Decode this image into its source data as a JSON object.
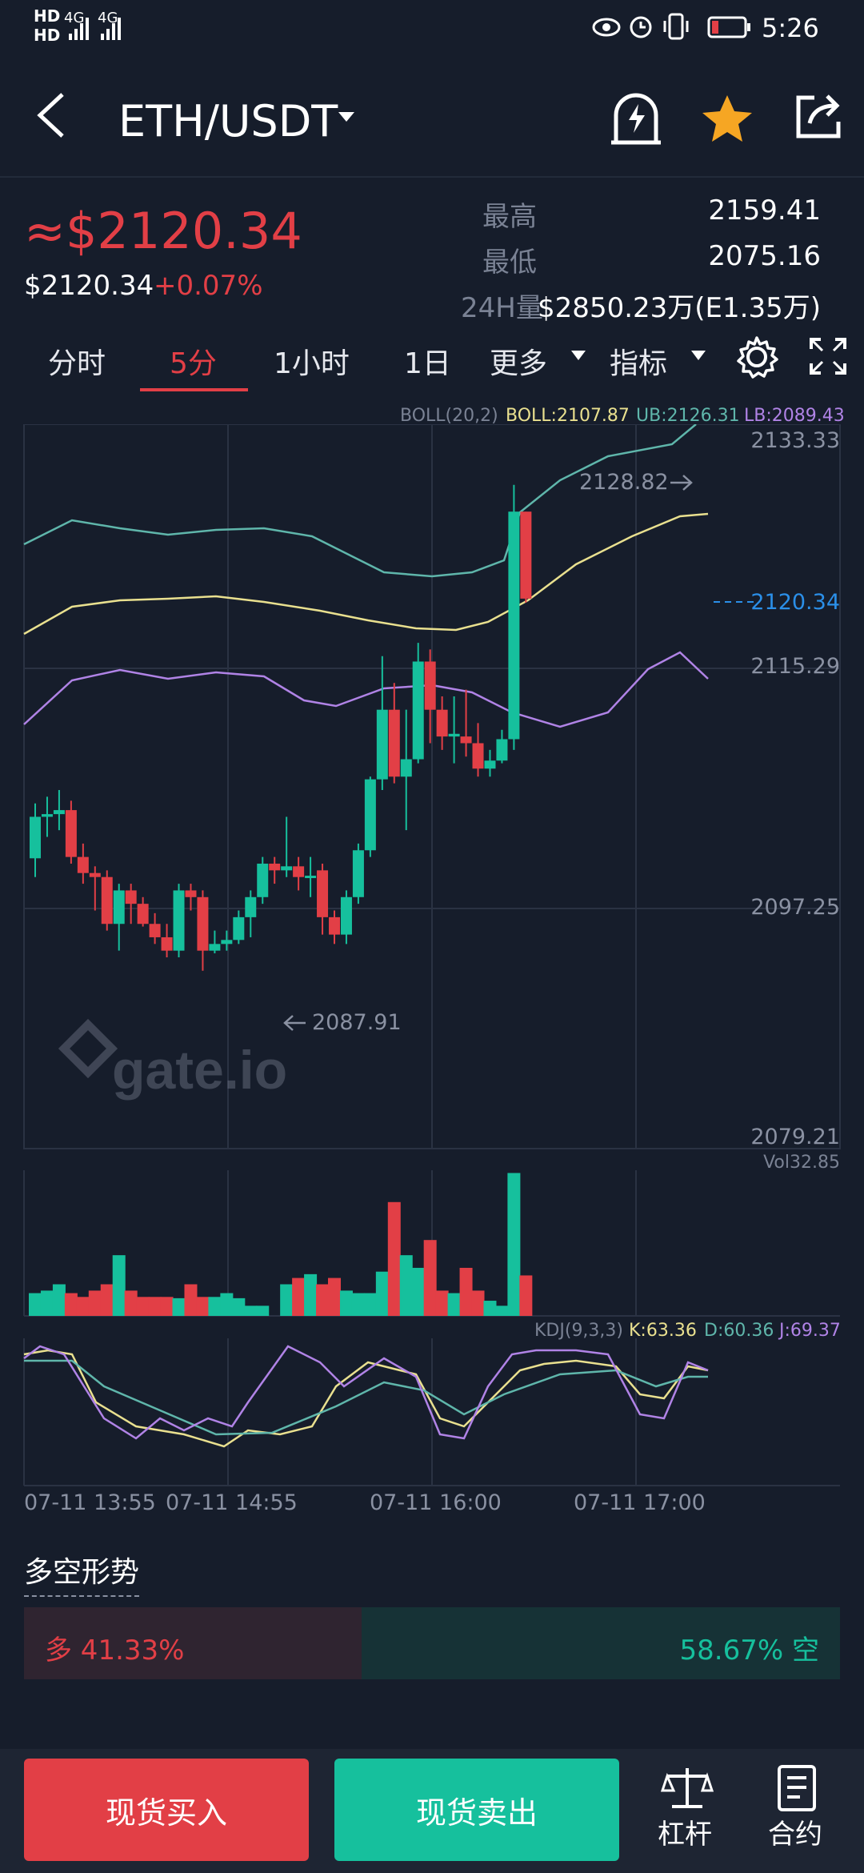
{
  "status_bar": {
    "time": "5:26",
    "network_1": "4G",
    "network_2": "4G",
    "sim_1": "HD",
    "sim_2": "HD"
  },
  "header": {
    "pair": "ETH/USDT"
  },
  "ticker": {
    "price_main": "≈$2120.34",
    "price_sub": "$2120.34",
    "change": "+0.07%",
    "high_label": "最高",
    "high_value": "2159.41",
    "low_label": "最低",
    "low_value": "2075.16",
    "volume_label": "24H量",
    "volume_value": "$2850.23万(E1.35万)"
  },
  "tabs": {
    "time_share": "分时",
    "m5": "5分",
    "h1": "1小时",
    "d1": "1日",
    "more": "更多",
    "indicator": "指标"
  },
  "chart": {
    "boll_legend": "BOLL(20,2)",
    "boll_value": "BOLL:2107.87",
    "ub_value": "UB:2126.31",
    "lb_value": "LB:2089.43",
    "y_top": "2133.33",
    "y_mid1": "2115.29",
    "y_mid2": "2097.25",
    "y_bottom": "2079.21",
    "last_price": "2120.34",
    "max_marker": "2128.82",
    "min_marker": "2087.91",
    "watermark": "gate.io",
    "vol_label": "Vol32.85",
    "kdj_legend": "KDJ(9,3,3)",
    "k_value": "K:63.36",
    "d_value": "D:60.36",
    "j_value": "J:69.37",
    "time_labels": [
      "07-11 13:55",
      "07-11 14:55",
      "07-11 16:00",
      "07-11 17:00"
    ],
    "colors": {
      "up": "#16c09d",
      "down": "#e23f46",
      "boll_mid": "#e9e08f",
      "boll_up": "#5fb6ab",
      "boll_low": "#b083e6"
    }
  },
  "sentiment": {
    "title": "多空形势",
    "long_label": "多 41.33%",
    "short_label": "58.67% 空",
    "long_ratio": 0.4133
  },
  "footer": {
    "buy": "现货买入",
    "sell": "现货卖出",
    "leverage": "杠杆",
    "contract": "合约"
  }
}
